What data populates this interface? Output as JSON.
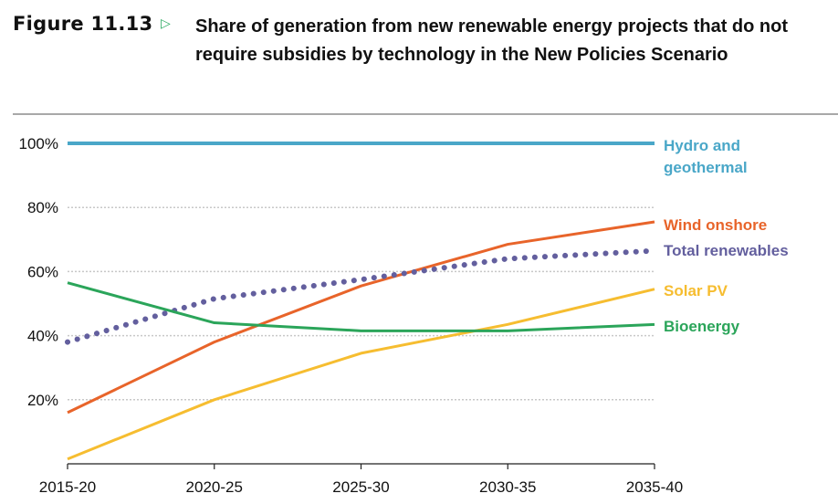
{
  "figure": {
    "label": "Figure 11.13",
    "arrow_icon": "triangle-right-outline",
    "title": "Share of generation from new renewable energy projects that do not require subsidies by technology in the New Policies Scenario"
  },
  "chart_data": {
    "type": "line",
    "title": "Share of generation from new renewable energy projects that do not require subsidies by technology in the New Policies Scenario",
    "xlabel": "",
    "ylabel": "",
    "categories": [
      "2015-20",
      "2020-25",
      "2025-30",
      "2030-35",
      "2035-40"
    ],
    "ylim": [
      0,
      100
    ],
    "yticks": [
      20,
      40,
      60,
      80,
      100
    ],
    "ytick_labels": [
      "20%",
      "40%",
      "60%",
      "80%",
      "100%"
    ],
    "grid": "horizontal dotted",
    "legend": "right (inline labels at line ends)",
    "series": [
      {
        "name": "Hydro and geothermal",
        "label_lines": [
          "Hydro and",
          "geothermal"
        ],
        "color": "#4aa7c8",
        "style": "solid",
        "values": [
          100,
          100,
          100,
          100,
          100
        ]
      },
      {
        "name": "Wind onshore",
        "label_lines": [
          "Wind onshore"
        ],
        "color": "#e8642a",
        "style": "solid",
        "values": [
          16,
          38,
          55.5,
          68.5,
          75.5
        ]
      },
      {
        "name": "Total renewables",
        "label_lines": [
          "Total renewables"
        ],
        "color": "#635f9e",
        "style": "dotted",
        "values": [
          38,
          51.5,
          57.5,
          64,
          66.5
        ]
      },
      {
        "name": "Solar PV",
        "label_lines": [
          "Solar PV"
        ],
        "color": "#f6bd30",
        "style": "solid",
        "values": [
          1.5,
          20,
          34.5,
          43.5,
          54.5
        ]
      },
      {
        "name": "Bioenergy",
        "label_lines": [
          "Bioenergy"
        ],
        "color": "#2ba55a",
        "style": "solid",
        "values": [
          56.5,
          44,
          41.5,
          41.5,
          43.5
        ]
      }
    ]
  }
}
